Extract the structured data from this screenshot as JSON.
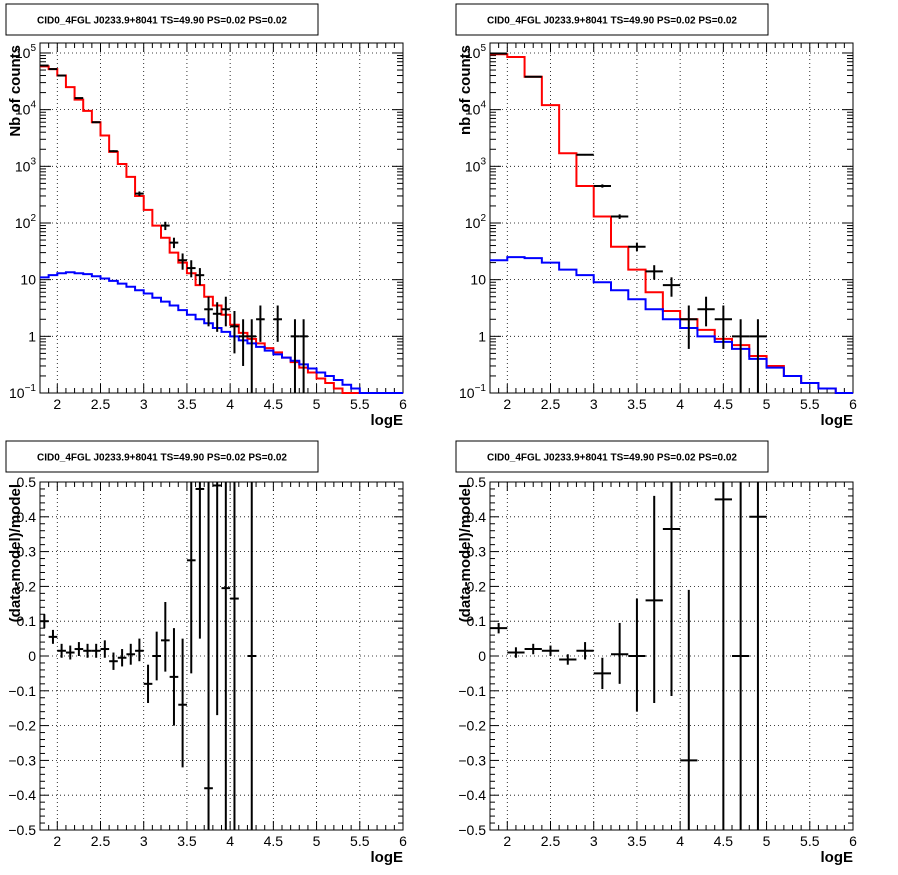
{
  "chart_data": [
    {
      "type": "histogram",
      "panel": "top-left",
      "title": "CID0_4FGL J0233.9+8041 TS=49.90 PS=0.02 PS=0.02",
      "xlabel": "logE",
      "ylabel": "Nb of counts",
      "xlim": [
        1.8,
        6.0
      ],
      "ylim": [
        0.1,
        150000
      ],
      "ylog": true,
      "grid": true,
      "xticks": [
        "2",
        "2.5",
        "3",
        "3.5",
        "4",
        "4.5",
        "5",
        "5.5",
        "6"
      ],
      "yticks": [
        {
          "value": 0.1,
          "base": "10",
          "exp": "−1"
        },
        {
          "value": 1,
          "label": "1"
        },
        {
          "value": 10,
          "label": "10"
        },
        {
          "value": 100,
          "base": "10",
          "exp": "2"
        },
        {
          "value": 1000,
          "base": "10",
          "exp": "3"
        },
        {
          "value": 10000,
          "base": "10",
          "exp": "4"
        },
        {
          "value": 100000,
          "base": "10",
          "exp": "5"
        }
      ],
      "bin_width": 0.1,
      "x_start": 1.8,
      "series": [
        {
          "role": "model",
          "color": "#ff0000",
          "values": [
            58000,
            52000,
            40000,
            25000,
            15000,
            9500,
            6000,
            3500,
            1800,
            1100,
            650,
            300,
            170,
            90,
            55,
            30,
            20,
            13,
            8,
            5,
            3.5,
            2.4,
            1.6,
            1.15,
            0.9,
            0.75,
            0.62,
            0.52,
            0.42,
            0.35,
            0.28,
            0.23,
            0.18,
            0.15,
            0.12,
            0.1,
            0.1,
            0.1,
            0.1,
            0.1,
            0.1,
            0.1
          ]
        },
        {
          "role": "background",
          "color": "#0000ff",
          "values": [
            11,
            12,
            13,
            13.5,
            13,
            12.5,
            11.5,
            10.5,
            9.5,
            8.5,
            7.5,
            6.5,
            5.7,
            4.8,
            4.1,
            3.5,
            2.9,
            2.4,
            2.0,
            1.7,
            1.4,
            1.2,
            1.0,
            0.85,
            0.75,
            0.65,
            0.56,
            0.48,
            0.42,
            0.37,
            0.32,
            0.27,
            0.23,
            0.2,
            0.17,
            0.14,
            0.12,
            0.1,
            0.1,
            0.1,
            0.1,
            0.1
          ]
        }
      ],
      "points": [
        {
          "x": 1.85,
          "y": 60000,
          "lo": 59500,
          "hi": 60500
        },
        {
          "x": 1.95,
          "y": 52000,
          "lo": 51500,
          "hi": 52500
        },
        {
          "x": 2.05,
          "y": 40000,
          "lo": 39500,
          "hi": 40500
        },
        {
          "x": 2.25,
          "y": 16000,
          "lo": 15700,
          "hi": 16300
        },
        {
          "x": 2.45,
          "y": 6000,
          "lo": 5800,
          "hi": 6200
        },
        {
          "x": 2.65,
          "y": 1850,
          "lo": 1780,
          "hi": 1920
        },
        {
          "x": 2.95,
          "y": 330,
          "lo": 300,
          "hi": 360
        },
        {
          "x": 3.25,
          "y": 90,
          "lo": 75,
          "hi": 105
        },
        {
          "x": 3.35,
          "y": 45,
          "lo": 36,
          "hi": 55
        },
        {
          "x": 3.45,
          "y": 22,
          "lo": 15,
          "hi": 29
        },
        {
          "x": 3.55,
          "y": 16,
          "lo": 11,
          "hi": 22
        },
        {
          "x": 3.65,
          "y": 12,
          "lo": 8,
          "hi": 16
        },
        {
          "x": 3.75,
          "y": 3,
          "lo": 1.5,
          "hi": 5
        },
        {
          "x": 3.85,
          "y": 2.5,
          "lo": 1.2,
          "hi": 4
        },
        {
          "x": 3.95,
          "y": 3,
          "lo": 1.5,
          "hi": 5
        },
        {
          "x": 4.05,
          "y": 1.5,
          "lo": 0.5,
          "hi": 2.8
        },
        {
          "x": 4.15,
          "y": 1.0,
          "lo": 0.3,
          "hi": 2.0
        },
        {
          "x": 4.25,
          "y": 1.0,
          "lo": 0.1,
          "hi": 2.0
        },
        {
          "x": 4.35,
          "y": 2.0,
          "lo": 0.8,
          "hi": 3.5
        },
        {
          "x": 4.55,
          "y": 2.0,
          "lo": 0.8,
          "hi": 3.5
        },
        {
          "x": 4.75,
          "y": 1.0,
          "lo": 0.1,
          "hi": 2.0
        },
        {
          "x": 4.85,
          "y": 1.0,
          "lo": 0.1,
          "hi": 2.0
        }
      ]
    },
    {
      "type": "histogram",
      "panel": "top-right",
      "title": "CID0_4FGL J0233.9+8041 TS=49.90 PS=0.02 PS=0.02",
      "xlabel": "logE",
      "ylabel": "nb of counts",
      "xlim": [
        1.8,
        6.0
      ],
      "ylim": [
        0.1,
        150000
      ],
      "ylog": true,
      "grid": true,
      "xticks": [
        "2",
        "2.5",
        "3",
        "3.5",
        "4",
        "4.5",
        "5",
        "5.5",
        "6"
      ],
      "yticks": [
        {
          "value": 0.1,
          "base": "10",
          "exp": "−1"
        },
        {
          "value": 1,
          "label": "1"
        },
        {
          "value": 10,
          "label": "10"
        },
        {
          "value": 100,
          "base": "10",
          "exp": "2"
        },
        {
          "value": 1000,
          "base": "10",
          "exp": "3"
        },
        {
          "value": 10000,
          "base": "10",
          "exp": "4"
        },
        {
          "value": 100000,
          "base": "10",
          "exp": "5"
        }
      ],
      "bin_width": 0.2,
      "x_start": 1.8,
      "series": [
        {
          "role": "model",
          "color": "#ff0000",
          "values": [
            95000,
            85000,
            38000,
            12000,
            1700,
            450,
            130,
            38,
            15,
            6,
            2.8,
            2.0,
            1.3,
            0.9,
            0.7,
            0.45,
            0.3,
            0.2,
            0.15,
            0.12,
            0.1
          ]
        },
        {
          "role": "background",
          "color": "#0000ff",
          "values": [
            22,
            25,
            24,
            20,
            15,
            12,
            9,
            6.5,
            4.5,
            3.0,
            2.0,
            1.4,
            1.0,
            0.8,
            0.6,
            0.4,
            0.28,
            0.2,
            0.15,
            0.12,
            0.1
          ]
        }
      ],
      "points": [
        {
          "x": 1.9,
          "y": 98000,
          "lo": 97000,
          "hi": 99000
        },
        {
          "x": 2.3,
          "y": 38000,
          "lo": 37500,
          "hi": 38500
        },
        {
          "x": 2.9,
          "y": 1600,
          "lo": 1550,
          "hi": 1650
        },
        {
          "x": 3.1,
          "y": 450,
          "lo": 420,
          "hi": 480
        },
        {
          "x": 3.3,
          "y": 130,
          "lo": 118,
          "hi": 142
        },
        {
          "x": 3.5,
          "y": 38,
          "lo": 32,
          "hi": 45
        },
        {
          "x": 3.7,
          "y": 14,
          "lo": 10,
          "hi": 18
        },
        {
          "x": 3.9,
          "y": 8,
          "lo": 5,
          "hi": 11
        },
        {
          "x": 4.1,
          "y": 2.0,
          "lo": 0.6,
          "hi": 3.5
        },
        {
          "x": 4.3,
          "y": 3.0,
          "lo": 1.5,
          "hi": 5
        },
        {
          "x": 4.5,
          "y": 2.0,
          "lo": 0.6,
          "hi": 3.5
        },
        {
          "x": 4.7,
          "y": 1.0,
          "lo": 0.1,
          "hi": 2.0
        },
        {
          "x": 4.9,
          "y": 1.0,
          "lo": 0.1,
          "hi": 2.0
        }
      ]
    },
    {
      "type": "scatter",
      "panel": "bottom-left",
      "title": "CID0_4FGL J0233.9+8041 TS=49.90 PS=0.02 PS=0.02",
      "xlabel": "logE",
      "ylabel": "(data-model)/model",
      "xlim": [
        1.8,
        6.0
      ],
      "ylim": [
        -0.5,
        0.5
      ],
      "ylog": false,
      "grid": true,
      "xticks": [
        "2",
        "2.5",
        "3",
        "3.5",
        "4",
        "4.5",
        "5",
        "5.5",
        "6"
      ],
      "yticks": [
        {
          "value": -0.5,
          "label": "−0.5"
        },
        {
          "value": -0.4,
          "label": "−0.4"
        },
        {
          "value": -0.3,
          "label": "−0.3"
        },
        {
          "value": -0.2,
          "label": "−0.2"
        },
        {
          "value": -0.1,
          "label": "−0.1"
        },
        {
          "value": 0,
          "label": "0"
        },
        {
          "value": 0.1,
          "label": "0.1"
        },
        {
          "value": 0.2,
          "label": "0.2"
        },
        {
          "value": 0.3,
          "label": "0.3"
        },
        {
          "value": 0.4,
          "label": "0.4"
        },
        {
          "value": 0.5,
          "label": "0.5"
        }
      ],
      "half_width": 0.05,
      "points": [
        {
          "x": 1.85,
          "y": 0.1,
          "lo": 0.08,
          "hi": 0.12
        },
        {
          "x": 1.95,
          "y": 0.055,
          "lo": 0.035,
          "hi": 0.075
        },
        {
          "x": 2.05,
          "y": 0.015,
          "lo": -0.005,
          "hi": 0.035
        },
        {
          "x": 2.15,
          "y": 0.01,
          "lo": -0.01,
          "hi": 0.03
        },
        {
          "x": 2.25,
          "y": 0.02,
          "lo": 0.0,
          "hi": 0.04
        },
        {
          "x": 2.35,
          "y": 0.015,
          "lo": -0.005,
          "hi": 0.035
        },
        {
          "x": 2.45,
          "y": 0.015,
          "lo": -0.005,
          "hi": 0.035
        },
        {
          "x": 2.55,
          "y": 0.02,
          "lo": -0.005,
          "hi": 0.045
        },
        {
          "x": 2.65,
          "y": -0.015,
          "lo": -0.04,
          "hi": 0.01
        },
        {
          "x": 2.75,
          "y": -0.005,
          "lo": -0.03,
          "hi": 0.02
        },
        {
          "x": 2.85,
          "y": 0.005,
          "lo": -0.025,
          "hi": 0.035
        },
        {
          "x": 2.95,
          "y": 0.015,
          "lo": -0.015,
          "hi": 0.05
        },
        {
          "x": 3.05,
          "y": -0.08,
          "lo": -0.135,
          "hi": -0.025
        },
        {
          "x": 3.15,
          "y": 0.0,
          "lo": -0.07,
          "hi": 0.07
        },
        {
          "x": 3.25,
          "y": 0.045,
          "lo": -0.045,
          "hi": 0.155
        },
        {
          "x": 3.35,
          "y": -0.06,
          "lo": -0.2,
          "hi": 0.08
        },
        {
          "x": 3.45,
          "y": -0.14,
          "lo": -0.32,
          "hi": 0.05
        },
        {
          "x": 3.55,
          "y": 0.275,
          "lo": -0.05,
          "hi": 0.5
        },
        {
          "x": 3.65,
          "y": 0.48,
          "lo": 0.05,
          "hi": 0.5
        },
        {
          "x": 3.75,
          "y": -0.38,
          "lo": -0.5,
          "hi": 0.5
        },
        {
          "x": 3.85,
          "y": 0.49,
          "lo": -0.17,
          "hi": 0.5
        },
        {
          "x": 3.95,
          "y": 0.195,
          "lo": -0.5,
          "hi": 0.5
        },
        {
          "x": 4.05,
          "y": 0.165,
          "lo": -0.5,
          "hi": 0.5
        },
        {
          "x": 4.25,
          "y": 0.0,
          "lo": -0.5,
          "hi": 0.5
        }
      ]
    },
    {
      "type": "scatter",
      "panel": "bottom-right",
      "title": "CID0_4FGL J0233.9+8041 TS=49.90 PS=0.02 PS=0.02",
      "xlabel": "logE",
      "ylabel": "(data-model)/model",
      "xlim": [
        1.8,
        6.0
      ],
      "ylim": [
        -0.5,
        0.5
      ],
      "ylog": false,
      "grid": true,
      "xticks": [
        "2",
        "2.5",
        "3",
        "3.5",
        "4",
        "4.5",
        "5",
        "5.5",
        "6"
      ],
      "yticks": [
        {
          "value": -0.5,
          "label": "−0.5"
        },
        {
          "value": -0.4,
          "label": "−0.4"
        },
        {
          "value": -0.3,
          "label": "−0.3"
        },
        {
          "value": -0.2,
          "label": "−0.2"
        },
        {
          "value": -0.1,
          "label": "−0.1"
        },
        {
          "value": 0,
          "label": "0"
        },
        {
          "value": 0.1,
          "label": "0.1"
        },
        {
          "value": 0.2,
          "label": "0.2"
        },
        {
          "value": 0.3,
          "label": "0.3"
        },
        {
          "value": 0.4,
          "label": "0.4"
        },
        {
          "value": 0.5,
          "label": "0.5"
        }
      ],
      "half_width": 0.1,
      "points": [
        {
          "x": 1.9,
          "y": 0.08,
          "lo": 0.065,
          "hi": 0.095
        },
        {
          "x": 2.1,
          "y": 0.01,
          "lo": -0.005,
          "hi": 0.025
        },
        {
          "x": 2.3,
          "y": 0.02,
          "lo": 0.005,
          "hi": 0.035
        },
        {
          "x": 2.5,
          "y": 0.015,
          "lo": 0.0,
          "hi": 0.03
        },
        {
          "x": 2.7,
          "y": -0.01,
          "lo": -0.025,
          "hi": 0.005
        },
        {
          "x": 2.9,
          "y": 0.015,
          "lo": -0.01,
          "hi": 0.04
        },
        {
          "x": 3.1,
          "y": -0.05,
          "lo": -0.095,
          "hi": -0.005
        },
        {
          "x": 3.3,
          "y": 0.005,
          "lo": -0.08,
          "hi": 0.095
        },
        {
          "x": 3.5,
          "y": 0.0,
          "lo": -0.16,
          "hi": 0.165
        },
        {
          "x": 3.7,
          "y": 0.16,
          "lo": -0.135,
          "hi": 0.46
        },
        {
          "x": 3.9,
          "y": 0.365,
          "lo": -0.115,
          "hi": 0.5
        },
        {
          "x": 4.1,
          "y": -0.3,
          "lo": -0.5,
          "hi": 0.19
        },
        {
          "x": 4.5,
          "y": 0.45,
          "lo": -0.5,
          "hi": 0.5
        },
        {
          "x": 4.7,
          "y": 0.0,
          "lo": -0.5,
          "hi": 0.5
        },
        {
          "x": 4.9,
          "y": 0.4,
          "lo": -0.5,
          "hi": 0.5
        }
      ]
    }
  ]
}
